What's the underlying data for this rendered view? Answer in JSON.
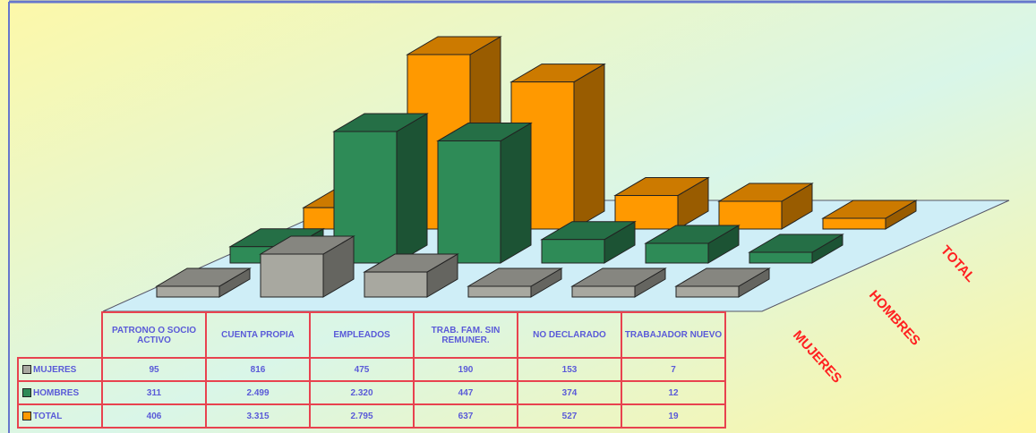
{
  "chart_data": {
    "type": "bar",
    "categories": [
      "PATRONO O SOCIO ACTIVO",
      "CUENTA PROPIA",
      "EMPLEADOS",
      "TRAB. FAM. SIN REMUNER.",
      "NO DECLARADO",
      "TRABAJADOR NUEVO"
    ],
    "series": [
      {
        "name": "MUJERES",
        "color": "#a8a8a0",
        "values": [
          95,
          816,
          475,
          190,
          153,
          7
        ],
        "table_labels": [
          "95",
          "816",
          "475",
          "190",
          "153",
          "7"
        ]
      },
      {
        "name": "HOMBRES",
        "color": "#2e8b57",
        "values": [
          311,
          2499,
          2320,
          447,
          374,
          12
        ],
        "table_labels": [
          "311",
          "2.499",
          "2.320",
          "447",
          "374",
          "12"
        ]
      },
      {
        "name": "TOTAL",
        "color": "#ff9900",
        "values": [
          406,
          3315,
          2795,
          637,
          527,
          19
        ],
        "table_labels": [
          "406",
          "3.315",
          "2.795",
          "637",
          "527",
          "19"
        ]
      }
    ],
    "depth_labels": [
      "MUJERES",
      "HOMBRES",
      "TOTAL"
    ],
    "style": "3d-column",
    "legend_placement": "data-table"
  },
  "colors": {
    "table_border": "#e8424f",
    "table_text": "#5a5ad8",
    "depth_label": "#ff2020",
    "floor": "#cfeef7"
  }
}
